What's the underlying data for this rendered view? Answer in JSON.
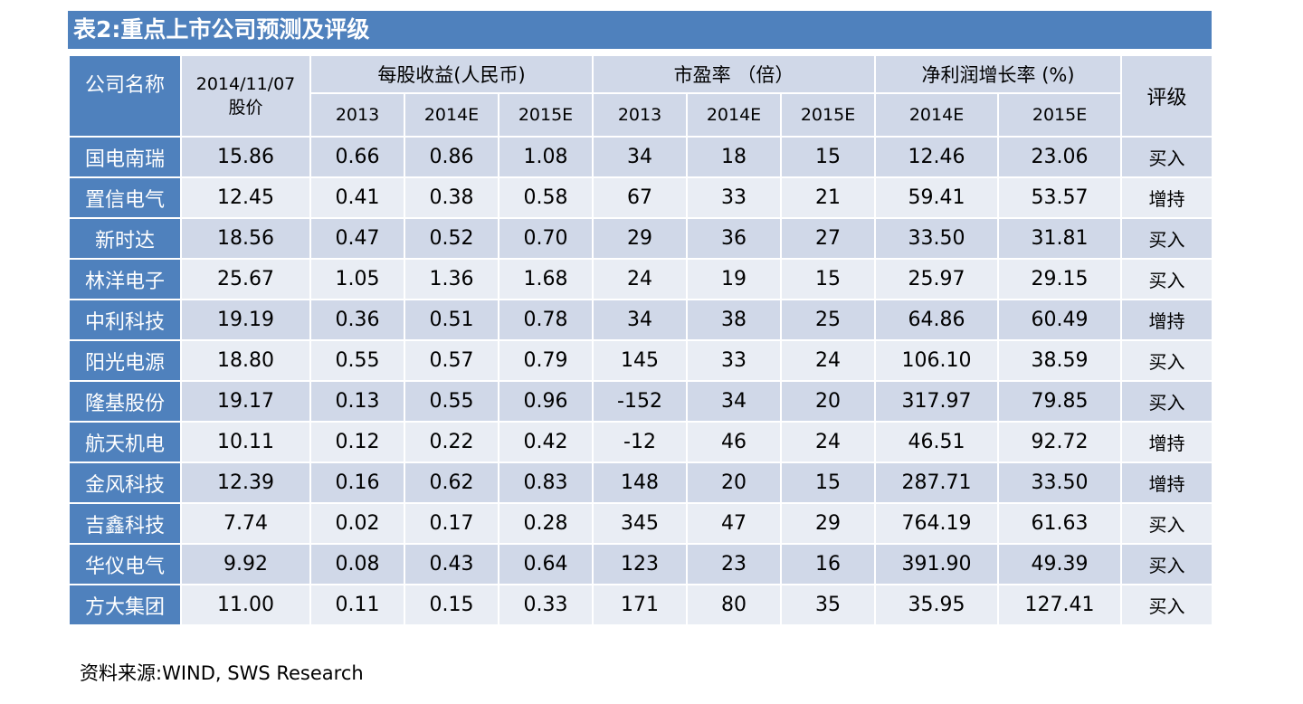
{
  "title": "表2:重点上市公司预测及评级",
  "header": {
    "company": "公司名称",
    "price_date": "2014/11/07",
    "price_label": "股价",
    "eps_group": "每股收益(人民币)",
    "pe_group": "市盈率 （倍）",
    "growth_group": "净利润增长率 (%)",
    "rating": "评级",
    "eps_years": [
      "2013",
      "2014E",
      "2015E"
    ],
    "pe_years": [
      "2013",
      "2014E",
      "2015E"
    ],
    "growth_years": [
      "2014E",
      "2015E"
    ]
  },
  "rows": [
    {
      "name": "国电南瑞",
      "price": "15.86",
      "eps": [
        "0.66",
        "0.86",
        "1.08"
      ],
      "pe": [
        "34",
        "18",
        "15"
      ],
      "growth": [
        "12.46",
        "23.06"
      ],
      "rating": "买入"
    },
    {
      "name": "置信电气",
      "price": "12.45",
      "eps": [
        "0.41",
        "0.38",
        "0.58"
      ],
      "pe": [
        "67",
        "33",
        "21"
      ],
      "growth": [
        "59.41",
        "53.57"
      ],
      "rating": "增持"
    },
    {
      "name": "新时达",
      "price": "18.56",
      "eps": [
        "0.47",
        "0.52",
        "0.70"
      ],
      "pe": [
        "29",
        "36",
        "27"
      ],
      "growth": [
        "33.50",
        "31.81"
      ],
      "rating": "买入"
    },
    {
      "name": "林洋电子",
      "price": "25.67",
      "eps": [
        "1.05",
        "1.36",
        "1.68"
      ],
      "pe": [
        "24",
        "19",
        "15"
      ],
      "growth": [
        "25.97",
        "29.15"
      ],
      "rating": "买入"
    },
    {
      "name": "中利科技",
      "price": "19.19",
      "eps": [
        "0.36",
        "0.51",
        "0.78"
      ],
      "pe": [
        "34",
        "38",
        "25"
      ],
      "growth": [
        "64.86",
        "60.49"
      ],
      "rating": "增持"
    },
    {
      "name": "阳光电源",
      "price": "18.80",
      "eps": [
        "0.55",
        "0.57",
        "0.79"
      ],
      "pe": [
        "145",
        "33",
        "24"
      ],
      "growth": [
        "106.10",
        "38.59"
      ],
      "rating": "买入"
    },
    {
      "name": "隆基股份",
      "price": "19.17",
      "eps": [
        "0.13",
        "0.55",
        "0.96"
      ],
      "pe": [
        "-152",
        "34",
        "20"
      ],
      "growth": [
        "317.97",
        "79.85"
      ],
      "rating": "买入"
    },
    {
      "name": "航天机电",
      "price": "10.11",
      "eps": [
        "0.12",
        "0.22",
        "0.42"
      ],
      "pe": [
        "-12",
        "46",
        "24"
      ],
      "growth": [
        "46.51",
        "92.72"
      ],
      "rating": "增持"
    },
    {
      "name": "金风科技",
      "price": "12.39",
      "eps": [
        "0.16",
        "0.62",
        "0.83"
      ],
      "pe": [
        "148",
        "20",
        "15"
      ],
      "growth": [
        "287.71",
        "33.50"
      ],
      "rating": "增持"
    },
    {
      "name": "吉鑫科技",
      "price": "7.74",
      "eps": [
        "0.02",
        "0.17",
        "0.28"
      ],
      "pe": [
        "345",
        "47",
        "29"
      ],
      "growth": [
        "764.19",
        "61.63"
      ],
      "rating": "买入"
    },
    {
      "name": "华仪电气",
      "price": "9.92",
      "eps": [
        "0.08",
        "0.43",
        "0.64"
      ],
      "pe": [
        "123",
        "23",
        "16"
      ],
      "growth": [
        "391.90",
        "49.39"
      ],
      "rating": "买入"
    },
    {
      "name": "方大集团",
      "price": "11.00",
      "eps": [
        "0.11",
        "0.15",
        "0.33"
      ],
      "pe": [
        "171",
        "80",
        "35"
      ],
      "growth": [
        "35.95",
        "127.41"
      ],
      "rating": "买入"
    }
  ],
  "source": "资料来源:WIND, SWS Research",
  "colors": {
    "accent": "#4f81bd",
    "band_dark": "#d0d8e8",
    "band_light": "#e9edf4"
  }
}
